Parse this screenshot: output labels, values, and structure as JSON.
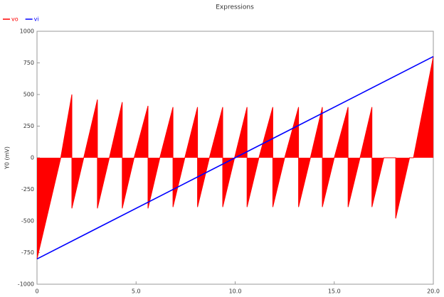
{
  "chart_data": {
    "type": "line",
    "title": "Expressions",
    "ylabel": "Y0 (mV)",
    "legend": "top-left",
    "grid": false,
    "xlim": [
      0,
      20
    ],
    "ylim": [
      -1000,
      1000
    ],
    "xticks": [
      0,
      {
        "value": 5,
        "label": "5.0"
      },
      {
        "value": 10,
        "label": "10.0"
      },
      {
        "value": 15,
        "label": "15.0"
      },
      {
        "value": 20,
        "label": "20.0"
      }
    ],
    "yticks": [
      -1000,
      -750,
      -500,
      -250,
      0,
      250,
      500,
      750,
      1000
    ],
    "series": [
      {
        "name": "vo",
        "color": "#ff0000",
        "fill": true,
        "x": [
          0,
          1.2,
          1.76,
          1.76,
          2.36,
          3.05,
          3.05,
          3.65,
          4.3,
          4.3,
          4.9,
          5.6,
          5.6,
          6.2,
          6.86,
          6.86,
          7.46,
          8.1,
          8.1,
          8.7,
          9.37,
          9.37,
          9.97,
          10.6,
          10.6,
          11.2,
          11.9,
          11.9,
          12.5,
          13.2,
          13.2,
          13.8,
          14.4,
          14.4,
          15.0,
          15.7,
          15.7,
          16.3,
          16.9,
          16.9,
          17.5,
          18.1,
          18.1,
          18.8,
          19.0,
          20
        ],
        "values": [
          -800,
          0,
          500,
          -400,
          0,
          460,
          -400,
          0,
          440,
          -400,
          0,
          410,
          -400,
          0,
          400,
          -390,
          0,
          400,
          -390,
          0,
          400,
          -390,
          0,
          400,
          -390,
          0,
          400,
          -390,
          0,
          400,
          -390,
          0,
          400,
          -390,
          0,
          400,
          -390,
          0,
          400,
          -390,
          0,
          0,
          -480,
          0,
          0,
          800
        ]
      },
      {
        "name": "vi",
        "color": "#0000ff",
        "fill": false,
        "x": [
          0,
          20
        ],
        "values": [
          -800,
          800
        ]
      }
    ]
  }
}
